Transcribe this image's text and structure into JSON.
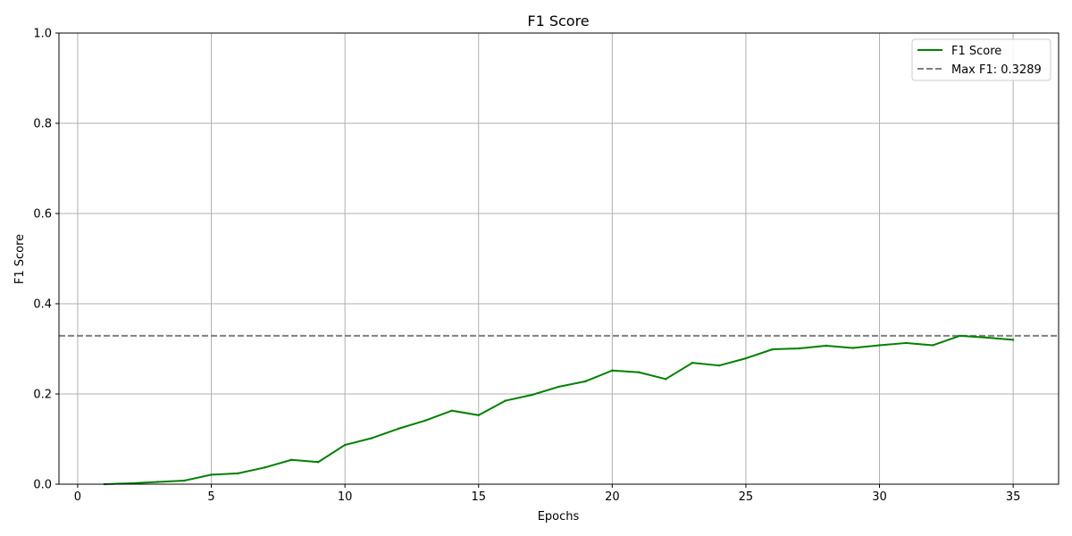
{
  "chart_data": {
    "type": "line",
    "title": "F1 Score",
    "xlabel": "Epochs",
    "ylabel": "F1 Score",
    "xlim": [
      -0.7,
      36.7
    ],
    "ylim": [
      0,
      1.0
    ],
    "xticks": [
      0,
      5,
      10,
      15,
      20,
      25,
      30,
      35
    ],
    "yticks": [
      0.0,
      0.2,
      0.4,
      0.6,
      0.8,
      1.0
    ],
    "xtick_labels": [
      "0",
      "5",
      "10",
      "15",
      "20",
      "25",
      "30",
      "35"
    ],
    "ytick_labels": [
      "0.0",
      "0.2",
      "0.4",
      "0.6",
      "0.8",
      "1.0"
    ],
    "grid": true,
    "legend_position": "top-right",
    "series": [
      {
        "name": "F1 Score",
        "color": "#008000",
        "x": [
          1,
          2,
          3,
          4,
          5,
          6,
          7,
          8,
          9,
          10,
          11,
          12,
          13,
          14,
          15,
          16,
          17,
          18,
          19,
          20,
          21,
          22,
          23,
          24,
          25,
          26,
          27,
          28,
          29,
          30,
          31,
          32,
          33,
          34,
          35
        ],
        "values": [
          0.0,
          0.002,
          0.005,
          0.008,
          0.021,
          0.024,
          0.037,
          0.054,
          0.049,
          0.087,
          0.102,
          0.123,
          0.141,
          0.163,
          0.153,
          0.185,
          0.198,
          0.216,
          0.228,
          0.252,
          0.248,
          0.233,
          0.269,
          0.263,
          0.279,
          0.299,
          0.301,
          0.307,
          0.302,
          0.308,
          0.313,
          0.308,
          0.3289,
          0.325,
          0.32
        ]
      }
    ],
    "reference_lines": [
      {
        "name": "Max F1: 0.3289",
        "y": 0.3289,
        "color": "#808080",
        "style": "dashed"
      }
    ]
  }
}
